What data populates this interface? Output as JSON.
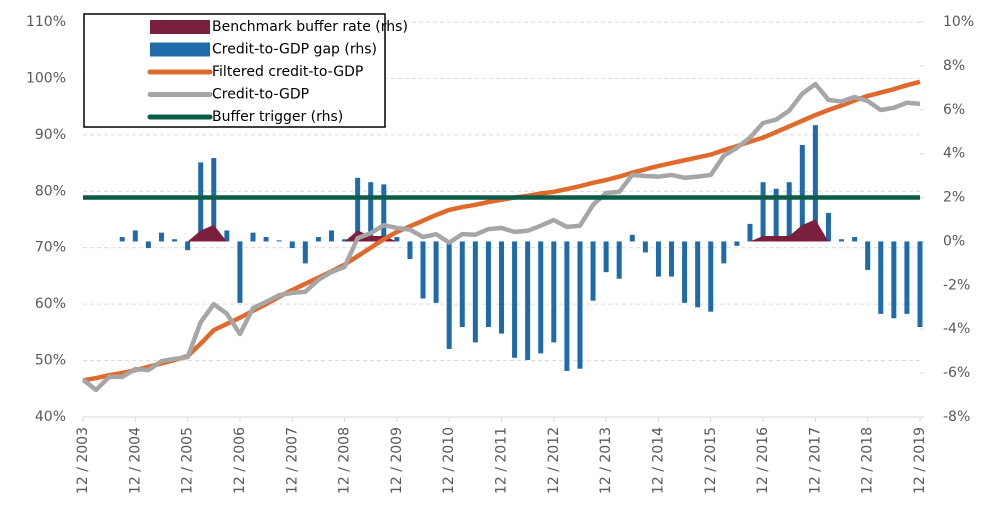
{
  "chart_data": {
    "type": "combo",
    "categories": [
      "12 / 2003",
      null,
      null,
      null,
      "12 / 2004",
      null,
      null,
      null,
      "12 / 2005",
      null,
      null,
      null,
      "12 / 2006",
      null,
      null,
      null,
      "12 / 2007",
      null,
      null,
      null,
      "12 / 2008",
      null,
      null,
      null,
      "12 / 2009",
      null,
      null,
      null,
      "12 / 2010",
      null,
      null,
      null,
      "12 / 2011",
      null,
      null,
      null,
      "12 / 2012",
      null,
      null,
      null,
      "12 / 2013",
      null,
      null,
      null,
      "12 / 2014",
      null,
      null,
      null,
      "12 / 2015",
      null,
      null,
      null,
      "12 / 2016",
      null,
      null,
      null,
      "12 / 2017",
      null,
      null,
      null,
      "12 / 2018",
      null,
      null,
      null,
      "12 / 2019"
    ],
    "ylim": [
      40,
      110
    ],
    "yticks": [
      {
        "value": 40,
        "label": "40%"
      },
      {
        "value": 50,
        "label": "50%"
      },
      {
        "value": 60,
        "label": "60%"
      },
      {
        "value": 70,
        "label": "70%"
      },
      {
        "value": 80,
        "label": "80%"
      },
      {
        "value": 90,
        "label": "90%"
      },
      {
        "value": 100,
        "label": "100%"
      },
      {
        "value": 110,
        "label": "110%"
      }
    ],
    "y2lim": [
      -8,
      10
    ],
    "y2ticks": [
      {
        "value": -8,
        "label": "-8%"
      },
      {
        "value": -6,
        "label": "-6%"
      },
      {
        "value": -4,
        "label": "-4%"
      },
      {
        "value": -2,
        "label": "-2%"
      },
      {
        "value": 0,
        "label": "0%"
      },
      {
        "value": 2,
        "label": "2%"
      },
      {
        "value": 4,
        "label": "4%"
      },
      {
        "value": 6,
        "label": "6%"
      },
      {
        "value": 8,
        "label": "8%"
      },
      {
        "value": 10,
        "label": "10%"
      }
    ],
    "grid": true,
    "series": [
      {
        "name": "Benchmark buffer rate (rhs)",
        "type": "area",
        "axis": "y2",
        "color": "#7b1f3f",
        "values": [
          0,
          0,
          0,
          0,
          0,
          0,
          0,
          0,
          0,
          0.5,
          0.75,
          0,
          0,
          0,
          0,
          0,
          0,
          0,
          0,
          0,
          0,
          0.5,
          0.25,
          0.25,
          0,
          0,
          0,
          0,
          0,
          0,
          0,
          0,
          0,
          0,
          0,
          0,
          0,
          0,
          0,
          0,
          0,
          0,
          0,
          0,
          0,
          0,
          0,
          0,
          0,
          0,
          0,
          0,
          0.25,
          0.25,
          0.25,
          0.75,
          1.0,
          0,
          0,
          0,
          0,
          0,
          0,
          0,
          0
        ]
      },
      {
        "name": "Credit-to-GDP gap (rhs)",
        "type": "bar",
        "axis": "y2",
        "color": "#1f6aa8",
        "values": [
          0,
          0,
          0,
          0.2,
          0.5,
          -0.3,
          0.4,
          0.1,
          -0.4,
          3.6,
          3.8,
          0.5,
          -2.8,
          0.4,
          0.2,
          0.05,
          -0.3,
          -1.0,
          0.2,
          0.5,
          0.1,
          2.9,
          2.7,
          2.6,
          0.2,
          -0.8,
          -2.6,
          -2.8,
          -4.9,
          -3.9,
          -4.6,
          -3.9,
          -4.2,
          -5.3,
          -5.4,
          -5.1,
          -4.6,
          -5.9,
          -5.8,
          -2.7,
          -1.4,
          -1.7,
          0.3,
          -0.5,
          -1.6,
          -1.6,
          -2.8,
          -3.0,
          -3.2,
          -1.0,
          -0.2,
          0.8,
          2.7,
          2.4,
          2.7,
          4.4,
          5.3,
          1.3,
          0.1,
          0.2,
          -1.3,
          -3.3,
          -3.5,
          -3.3,
          -3.9
        ]
      },
      {
        "name": "Filtered credit-to-GDP",
        "type": "line",
        "color": "#e0692c",
        "values": [
          46.5,
          46.9,
          47.4,
          47.8,
          48.3,
          48.9,
          49.5,
          50.1,
          50.8,
          53.0,
          55.4,
          56.5,
          57.6,
          58.8,
          60.0,
          61.3,
          62.5,
          63.6,
          64.7,
          65.8,
          67.0,
          68.5,
          70.0,
          71.5,
          72.8,
          73.8,
          74.8,
          75.8,
          76.7,
          77.2,
          77.6,
          78.1,
          78.5,
          78.9,
          79.2,
          79.6,
          79.9,
          80.4,
          80.9,
          81.5,
          82.0,
          82.6,
          83.3,
          83.9,
          84.5,
          85.0,
          85.5,
          86.0,
          86.5,
          87.3,
          88.0,
          88.8,
          89.5,
          90.5,
          91.5,
          92.5,
          93.5,
          94.4,
          95.2,
          96.1,
          96.9,
          97.5,
          98.1,
          98.8,
          99.4
        ]
      },
      {
        "name": "Credit-to-GDP",
        "type": "line",
        "color": "#a6a6a6",
        "values": [
          46.6,
          44.8,
          47.1,
          47.1,
          48.5,
          48.3,
          49.9,
          50.3,
          50.6,
          56.8,
          60.0,
          58.3,
          54.7,
          59.3,
          60.4,
          61.6,
          62.0,
          62.2,
          64.3,
          65.7,
          66.6,
          71.7,
          72.6,
          74.0,
          73.5,
          73.2,
          71.9,
          72.4,
          70.9,
          72.4,
          72.3,
          73.3,
          73.5,
          72.8,
          73.0,
          73.9,
          74.9,
          73.7,
          73.9,
          77.6,
          79.7,
          79.9,
          82.9,
          82.7,
          82.6,
          82.9,
          82.4,
          82.6,
          82.9,
          86.3,
          87.7,
          89.5,
          92.1,
          92.7,
          94.3,
          97.3,
          99.0,
          96.2,
          95.9,
          96.7,
          96.0,
          94.4,
          94.8,
          95.7,
          95.5
        ]
      },
      {
        "name": "Buffer trigger (rhs)",
        "type": "line",
        "axis": "y2",
        "color": "#0b5c47",
        "values": [
          2,
          2,
          2,
          2,
          2,
          2,
          2,
          2,
          2,
          2,
          2,
          2,
          2,
          2,
          2,
          2,
          2,
          2,
          2,
          2,
          2,
          2,
          2,
          2,
          2,
          2,
          2,
          2,
          2,
          2,
          2,
          2,
          2,
          2,
          2,
          2,
          2,
          2,
          2,
          2,
          2,
          2,
          2,
          2,
          2,
          2,
          2,
          2,
          2,
          2,
          2,
          2,
          2,
          2,
          2,
          2,
          2,
          2,
          2,
          2,
          2,
          2,
          2,
          2,
          2
        ]
      }
    ]
  }
}
